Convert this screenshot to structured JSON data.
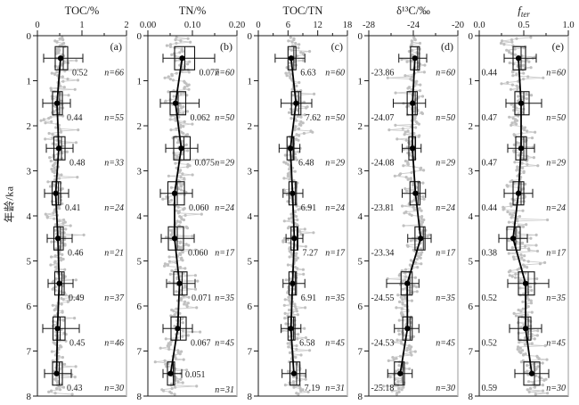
{
  "y_axis": {
    "label": "年龄/ka",
    "min": 0,
    "max": 8,
    "ticks": [
      0,
      1,
      2,
      3,
      4,
      5,
      6,
      7,
      8
    ]
  },
  "chart_data": [
    {
      "id": "a",
      "type": "boxplot-depth-series",
      "panel_label": "(a)",
      "title": "TOC/%",
      "x_min": 0,
      "x_max": 2,
      "label_side": "right",
      "x_ticks": [
        {
          "v": 0,
          "label": "0"
        },
        {
          "v": 1,
          "label": "1"
        },
        {
          "v": 2,
          "label": "2"
        }
      ],
      "rows": [
        {
          "age": 0.5,
          "mean": 0.52,
          "value": "0.52",
          "n": "n=66",
          "q1": 0.4,
          "q3": 0.68,
          "lo": 0.14,
          "hi": 1.02
        },
        {
          "age": 1.5,
          "mean": 0.44,
          "value": "0.44",
          "n": "n=55",
          "q1": 0.34,
          "q3": 0.56,
          "lo": 0.12,
          "hi": 0.74
        },
        {
          "age": 2.5,
          "mean": 0.48,
          "value": "0.48",
          "n": "n=33",
          "q1": 0.37,
          "q3": 0.62,
          "lo": 0.2,
          "hi": 0.8
        },
        {
          "age": 3.5,
          "mean": 0.41,
          "value": "0.41",
          "n": "n=24",
          "q1": 0.33,
          "q3": 0.52,
          "lo": 0.16,
          "hi": 0.7
        },
        {
          "age": 4.5,
          "mean": 0.46,
          "value": "0.46",
          "n": "n=21",
          "q1": 0.37,
          "q3": 0.58,
          "lo": 0.22,
          "hi": 0.78
        },
        {
          "age": 5.5,
          "mean": 0.49,
          "value": "0.49",
          "n": "n=37",
          "q1": 0.39,
          "q3": 0.6,
          "lo": 0.24,
          "hi": 0.8
        },
        {
          "age": 6.5,
          "mean": 0.45,
          "value": "0.45",
          "n": "n=46",
          "q1": 0.35,
          "q3": 0.62,
          "lo": 0.12,
          "hi": 0.94
        },
        {
          "age": 7.5,
          "mean": 0.43,
          "value": "0.43",
          "n": "n=30",
          "q1": 0.34,
          "q3": 0.56,
          "lo": 0.16,
          "hi": 0.76
        }
      ],
      "scatter": {
        "seed": 11,
        "sigma": 0.11,
        "outlier_dir": 1,
        "outlier_mag": 0.5,
        "points": 310,
        "clamp": [
          0.05,
          1.9
        ]
      }
    },
    {
      "id": "b",
      "type": "boxplot-depth-series",
      "panel_label": "(b)",
      "title": "TN/%",
      "x_min": 0,
      "x_max": 0.2,
      "label_side": "right",
      "x_ticks": [
        {
          "v": 0,
          "label": "0.00"
        },
        {
          "v": 0.1,
          "label": "0.10"
        },
        {
          "v": 0.2,
          "label": "0.20"
        }
      ],
      "rows": [
        {
          "age": 0.5,
          "mean": 0.077,
          "value": "0.077",
          "n": "n=60",
          "q1": 0.06,
          "q3": 0.105,
          "lo": 0.034,
          "hi": 0.15
        },
        {
          "age": 1.5,
          "mean": 0.062,
          "value": "0.062",
          "n": "n=50",
          "q1": 0.05,
          "q3": 0.085,
          "lo": 0.028,
          "hi": 0.115
        },
        {
          "age": 2.5,
          "mean": 0.075,
          "value": "0.075",
          "n": "n=29",
          "q1": 0.058,
          "q3": 0.095,
          "lo": 0.04,
          "hi": 0.112
        },
        {
          "age": 3.5,
          "mean": 0.06,
          "value": "0.060",
          "n": "n=24",
          "q1": 0.045,
          "q3": 0.082,
          "lo": 0.028,
          "hi": 0.1
        },
        {
          "age": 4.5,
          "mean": 0.06,
          "value": "0.060",
          "n": "n=17",
          "q1": 0.046,
          "q3": 0.08,
          "lo": 0.03,
          "hi": 0.104
        },
        {
          "age": 5.5,
          "mean": 0.071,
          "value": "0.071",
          "n": "n=35",
          "q1": 0.058,
          "q3": 0.088,
          "lo": 0.042,
          "hi": 0.106
        },
        {
          "age": 6.5,
          "mean": 0.067,
          "value": "0.067",
          "n": "n=45",
          "q1": 0.052,
          "q3": 0.086,
          "lo": 0.034,
          "hi": 0.1
        },
        {
          "age": 7.5,
          "mean": 0.051,
          "value": "0.051",
          "n": "n=31",
          "q1": 0.044,
          "q3": 0.06,
          "lo": 0.034,
          "hi": 0.076,
          "label_beside": true
        }
      ],
      "scatter": {
        "seed": 22,
        "sigma": 0.013,
        "outlier_dir": 1,
        "outlier_mag": 0.055,
        "points": 310,
        "clamp": [
          0.006,
          0.192
        ]
      }
    },
    {
      "id": "c",
      "type": "boxplot-depth-series",
      "panel_label": "(c)",
      "title": "TOC/TN",
      "x_min": 0,
      "x_max": 18,
      "label_side": "right",
      "x_ticks": [
        {
          "v": 0,
          "label": "0"
        },
        {
          "v": 6,
          "label": "6"
        },
        {
          "v": 12,
          "label": "12"
        },
        {
          "v": 18,
          "label": "18"
        }
      ],
      "rows": [
        {
          "age": 0.5,
          "mean": 6.63,
          "value": "6.63",
          "n": "n=60",
          "q1": 6.0,
          "q3": 7.6,
          "lo": 3.4,
          "hi": 9.4
        },
        {
          "age": 1.5,
          "mean": 7.62,
          "value": "7.62",
          "n": "n=50",
          "q1": 6.7,
          "q3": 8.6,
          "lo": 4.6,
          "hi": 10.8
        },
        {
          "age": 2.5,
          "mean": 6.48,
          "value": "6.48",
          "n": "n=29",
          "q1": 5.8,
          "q3": 7.2,
          "lo": 4.2,
          "hi": 8.4
        },
        {
          "age": 3.5,
          "mean": 6.91,
          "value": "6.91",
          "n": "n=24",
          "q1": 6.2,
          "q3": 7.7,
          "lo": 5.0,
          "hi": 9.0
        },
        {
          "age": 4.5,
          "mean": 7.27,
          "value": "7.27",
          "n": "n=17",
          "q1": 6.6,
          "q3": 8.0,
          "lo": 5.6,
          "hi": 9.0
        },
        {
          "age": 5.5,
          "mean": 6.91,
          "value": "6.91",
          "n": "n=35",
          "q1": 6.2,
          "q3": 7.7,
          "lo": 5.0,
          "hi": 9.4
        },
        {
          "age": 6.5,
          "mean": 6.58,
          "value": "6.58",
          "n": "n=45",
          "q1": 6.0,
          "q3": 7.4,
          "lo": 4.6,
          "hi": 8.6
        },
        {
          "age": 7.5,
          "mean": 7.19,
          "value": "7.19",
          "n": "n=31",
          "q1": 6.4,
          "q3": 8.4,
          "lo": 4.8,
          "hi": 9.6
        }
      ],
      "scatter": {
        "seed": 33,
        "sigma": 1.0,
        "outlier_dir": 1,
        "outlier_mag": 3.2,
        "points": 310,
        "clamp": [
          0.4,
          17.6
        ]
      }
    },
    {
      "id": "d",
      "type": "boxplot-depth-series",
      "panel_label": "(d)",
      "title": "δ¹³C/‰",
      "x_min": -28,
      "x_max": -20,
      "label_side": "left",
      "x_ticks": [
        {
          "v": -28,
          "label": "-28"
        },
        {
          "v": -24,
          "label": "-24"
        },
        {
          "v": -20,
          "label": "-20"
        }
      ],
      "rows": [
        {
          "age": 0.5,
          "mean": -23.86,
          "value": "-23.86",
          "n": "n=60",
          "q1": -24.25,
          "q3": -23.45,
          "lo": -25.3,
          "hi": -22.8
        },
        {
          "age": 1.5,
          "mean": -24.07,
          "value": "-24.07",
          "n": "n=50",
          "q1": -24.55,
          "q3": -23.65,
          "lo": -25.8,
          "hi": -22.9
        },
        {
          "age": 2.5,
          "mean": -24.08,
          "value": "-24.08",
          "n": "n=29",
          "q1": -24.4,
          "q3": -23.8,
          "lo": -25.0,
          "hi": -23.3
        },
        {
          "age": 3.5,
          "mean": -23.81,
          "value": "-23.81",
          "n": "n=24",
          "q1": -24.3,
          "q3": -23.4,
          "lo": -25.0,
          "hi": -22.9
        },
        {
          "age": 4.5,
          "mean": -23.34,
          "value": "-23.34",
          "n": "n=17",
          "q1": -23.85,
          "q3": -22.95,
          "lo": -24.5,
          "hi": -22.4
        },
        {
          "age": 5.5,
          "mean": -24.55,
          "value": "-24.55",
          "n": "n=35",
          "q1": -25.1,
          "q3": -24.1,
          "lo": -26.4,
          "hi": -23.5
        },
        {
          "age": 6.5,
          "mean": -24.53,
          "value": "-24.53",
          "n": "n=45",
          "q1": -24.95,
          "q3": -24.1,
          "lo": -25.7,
          "hi": -23.5
        },
        {
          "age": 7.5,
          "mean": -25.18,
          "value": "-25.18",
          "n": "n=30",
          "q1": -25.7,
          "q3": -24.8,
          "lo": -26.3,
          "hi": -24.1
        }
      ],
      "scatter": {
        "seed": 44,
        "sigma": 0.5,
        "outlier_dir": -1,
        "outlier_mag": 1.7,
        "points": 310,
        "clamp": [
          -27.7,
          -20.4
        ]
      }
    },
    {
      "id": "e",
      "type": "boxplot-depth-series",
      "panel_label": "(e)",
      "title": "f",
      "title_sub": "ter",
      "x_min": 0,
      "x_max": 1,
      "label_side": "left",
      "x_ticks": [
        {
          "v": 0,
          "label": "0.0"
        },
        {
          "v": 0.5,
          "label": "0.5"
        },
        {
          "v": 1,
          "label": "1.0"
        }
      ],
      "rows": [
        {
          "age": 0.5,
          "mean": 0.44,
          "value": "0.44",
          "n": "n=60",
          "q1": 0.38,
          "q3": 0.52,
          "lo": 0.28,
          "hi": 0.64
        },
        {
          "age": 1.5,
          "mean": 0.47,
          "value": "0.47",
          "n": "n=50",
          "q1": 0.4,
          "q3": 0.56,
          "lo": 0.3,
          "hi": 0.7
        },
        {
          "age": 2.5,
          "mean": 0.47,
          "value": "0.47",
          "n": "n=29",
          "q1": 0.41,
          "q3": 0.53,
          "lo": 0.32,
          "hi": 0.62
        },
        {
          "age": 3.5,
          "mean": 0.44,
          "value": "0.44",
          "n": "n=24",
          "q1": 0.38,
          "q3": 0.5,
          "lo": 0.28,
          "hi": 0.6
        },
        {
          "age": 4.5,
          "mean": 0.38,
          "value": "0.38",
          "n": "n=17",
          "q1": 0.31,
          "q3": 0.46,
          "lo": 0.22,
          "hi": 0.54
        },
        {
          "age": 5.5,
          "mean": 0.52,
          "value": "0.52",
          "n": "n=35",
          "q1": 0.44,
          "q3": 0.62,
          "lo": 0.32,
          "hi": 0.78
        },
        {
          "age": 6.5,
          "mean": 0.52,
          "value": "0.52",
          "n": "n=45",
          "q1": 0.44,
          "q3": 0.58,
          "lo": 0.34,
          "hi": 0.7
        },
        {
          "age": 7.5,
          "mean": 0.59,
          "value": "0.59",
          "n": "n=30",
          "q1": 0.5,
          "q3": 0.68,
          "lo": 0.4,
          "hi": 0.78
        }
      ],
      "scatter": {
        "seed": 55,
        "sigma": 0.08,
        "outlier_dir": 1,
        "outlier_mag": 0.24,
        "points": 310,
        "clamp": [
          0.03,
          0.97
        ]
      }
    }
  ],
  "style": {
    "axis_color": "#1a1a1a",
    "right_border_color": "#b0b0b0",
    "scatter_dot_color": "#c0c0c0",
    "scatter_line_color": "#cccccc",
    "n_label_color": "#9a9a9a",
    "box_color": "#111111",
    "trend_color": "#000000"
  }
}
